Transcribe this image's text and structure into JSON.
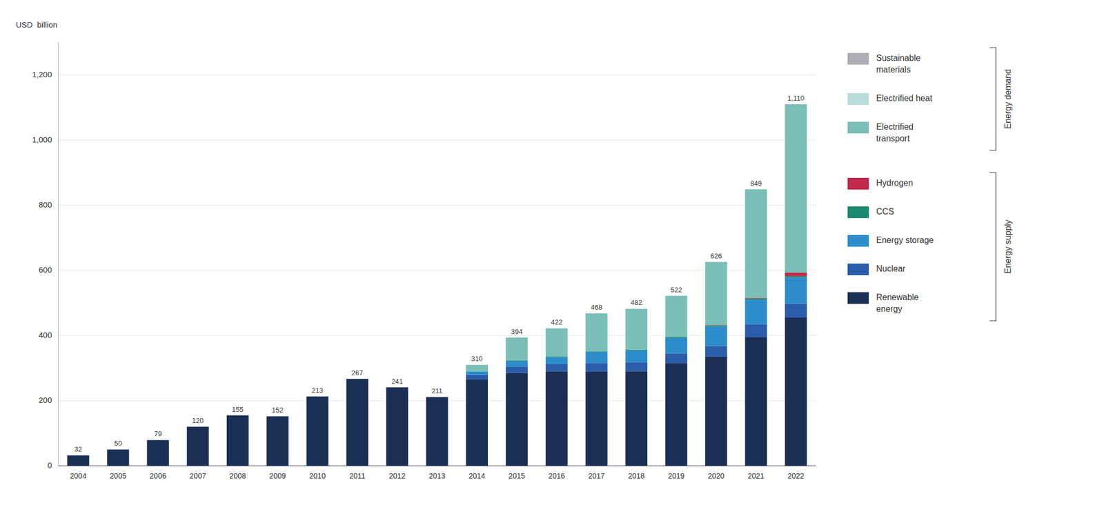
{
  "chart_data": {
    "type": "bar",
    "stacked": true,
    "grid": true,
    "legend": "right",
    "ylabel": "USD  billion",
    "categories": [
      "2004",
      "2005",
      "2006",
      "2007",
      "2008",
      "2009",
      "2010",
      "2011",
      "2012",
      "2013",
      "2014",
      "2015",
      "2016",
      "2017",
      "2018",
      "2019",
      "2020",
      "2021",
      "2022"
    ],
    "series": [
      {
        "name": "Renewable\nenergy",
        "color": "#1b2f55",
        "values": [
          32,
          50,
          79,
          120,
          155,
          152,
          213,
          267,
          241,
          211,
          265,
          285,
          290,
          290,
          290,
          315,
          335,
          395,
          455
        ]
      },
      {
        "name": "Nuclear",
        "color": "#2a5caa",
        "values": [
          0,
          0,
          0,
          0,
          0,
          0,
          0,
          0,
          0,
          0,
          15,
          20,
          22,
          25,
          28,
          30,
          33,
          40,
          43
        ]
      },
      {
        "name": "Energy storage",
        "color": "#2d8dcb",
        "values": [
          0,
          0,
          0,
          0,
          0,
          0,
          0,
          0,
          0,
          0,
          10,
          17,
          22,
          35,
          36,
          48,
          60,
          75,
          80
        ]
      },
      {
        "name": "CCS",
        "color": "#1a8a6e",
        "values": [
          0,
          0,
          0,
          0,
          0,
          0,
          0,
          0,
          0,
          0,
          0,
          2,
          2,
          2,
          2,
          3,
          3,
          4,
          4
        ]
      },
      {
        "name": "Hydrogen",
        "color": "#c0294a",
        "values": [
          0,
          0,
          0,
          0,
          0,
          0,
          0,
          0,
          0,
          0,
          0,
          0,
          0,
          0,
          0,
          0,
          1,
          2,
          11
        ]
      },
      {
        "name": "Electrified\ntransport",
        "color": "#7bbfb8",
        "values": [
          0,
          0,
          0,
          0,
          0,
          0,
          0,
          0,
          0,
          0,
          20,
          70,
          86,
          116,
          126,
          126,
          194,
          333,
          517
        ]
      },
      {
        "name": "Electrified heat",
        "color": "#b8ddd8",
        "values": [
          0,
          0,
          0,
          0,
          0,
          0,
          0,
          0,
          0,
          0,
          0,
          0,
          0,
          0,
          0,
          0,
          0,
          0,
          0
        ]
      },
      {
        "name": "Sustainable\nmaterials",
        "color": "#aeadb5",
        "values": [
          0,
          0,
          0,
          0,
          0,
          0,
          0,
          0,
          0,
          0,
          0,
          0,
          0,
          0,
          0,
          0,
          0,
          0,
          0
        ]
      }
    ],
    "totals": [
      32,
      50,
      79,
      120,
      155,
      152,
      213,
      267,
      241,
      211,
      310,
      394,
      422,
      468,
      482,
      522,
      626,
      849,
      1110
    ],
    "total_labels": [
      "32",
      "50",
      "79",
      "120",
      "155",
      "152",
      "213",
      "267",
      "241",
      "211",
      "310",
      "394",
      "422",
      "468",
      "482",
      "522",
      "626",
      "849",
      "1,110"
    ],
    "groups": [
      {
        "name": "Energy supply",
        "series": [
          0,
          1,
          2,
          3,
          4
        ]
      },
      {
        "name": "Energy demand",
        "series": [
          5,
          6,
          7
        ]
      }
    ],
    "ylim": [
      0,
      1300
    ],
    "yticks": [
      0,
      200,
      400,
      600,
      800,
      {
        "value": 1000,
        "label": "1,000"
      },
      {
        "value": 1200,
        "label": "1,200"
      }
    ]
  }
}
